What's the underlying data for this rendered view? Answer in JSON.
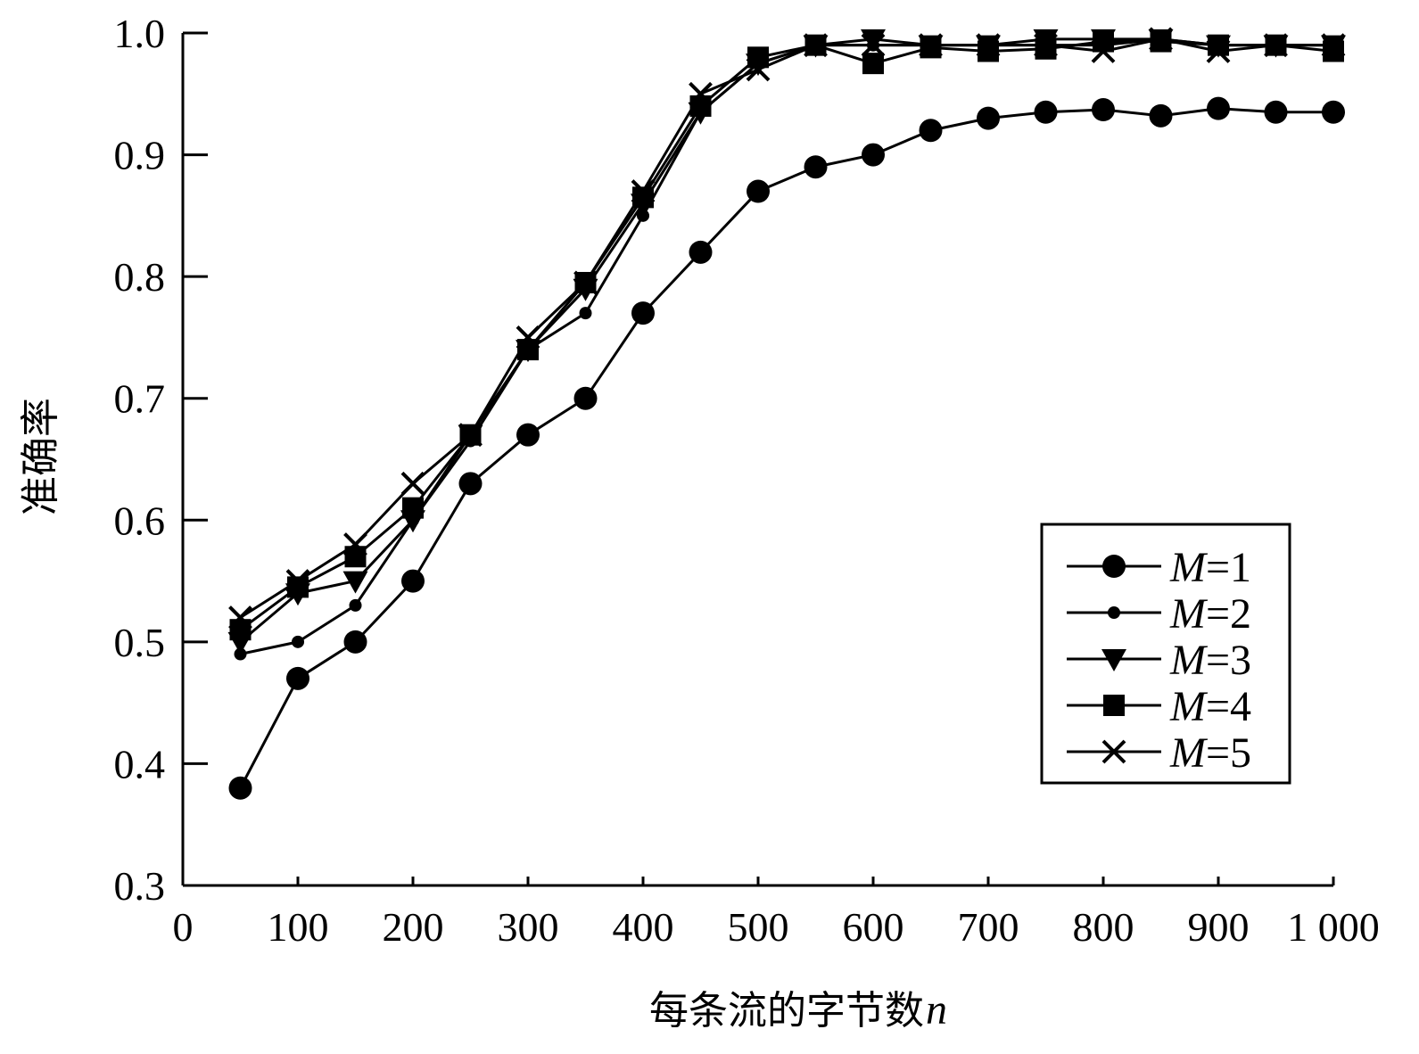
{
  "chart_data": {
    "type": "line",
    "xlabel": "每条流的字节数",
    "xlabel_var": "n",
    "ylabel": "准确率",
    "xlim": [
      0,
      1000
    ],
    "ylim": [
      0.3,
      1.0
    ],
    "x_ticks": [
      0,
      100,
      200,
      300,
      400,
      500,
      600,
      700,
      800,
      900,
      1000
    ],
    "x_tick_labels": [
      "0",
      "100",
      "200",
      "300",
      "400",
      "500",
      "600",
      "700",
      "800",
      "900",
      "1 000"
    ],
    "y_ticks": [
      0.3,
      0.4,
      0.5,
      0.6,
      0.7,
      0.8,
      0.9,
      1.0
    ],
    "y_tick_labels": [
      "0.3",
      "0.4",
      "0.5",
      "0.6",
      "0.7",
      "0.8",
      "0.9",
      "1.0"
    ],
    "grid": false,
    "legend_position": "bottom-right",
    "x": [
      50,
      100,
      150,
      200,
      250,
      300,
      350,
      400,
      450,
      500,
      550,
      600,
      650,
      700,
      750,
      800,
      850,
      900,
      950,
      1000
    ],
    "series": [
      {
        "name": "M=1",
        "label_var": "M",
        "label_rest": "=1",
        "marker": "circle-large",
        "values": [
          0.38,
          0.47,
          0.5,
          0.55,
          0.63,
          0.67,
          0.7,
          0.77,
          0.82,
          0.87,
          0.89,
          0.9,
          0.92,
          0.93,
          0.935,
          0.937,
          0.932,
          0.938,
          0.935,
          0.935
        ]
      },
      {
        "name": "M=2",
        "label_var": "M",
        "label_rest": "=2",
        "marker": "circle-small",
        "values": [
          0.49,
          0.5,
          0.53,
          0.6,
          0.665,
          0.74,
          0.77,
          0.85,
          0.935,
          0.975,
          0.99,
          0.99,
          0.99,
          0.99,
          0.99,
          0.99,
          0.995,
          0.99,
          0.99,
          0.99
        ]
      },
      {
        "name": "M=3",
        "label_var": "M",
        "label_rest": "=3",
        "marker": "triangle-down",
        "values": [
          0.5,
          0.54,
          0.55,
          0.6,
          0.67,
          0.74,
          0.79,
          0.86,
          0.935,
          0.975,
          0.99,
          0.995,
          0.99,
          0.99,
          0.995,
          0.995,
          0.995,
          0.99,
          0.99,
          0.99
        ]
      },
      {
        "name": "M=4",
        "label_var": "M",
        "label_rest": "=4",
        "marker": "square",
        "values": [
          0.51,
          0.545,
          0.57,
          0.61,
          0.67,
          0.74,
          0.795,
          0.865,
          0.94,
          0.98,
          0.99,
          0.975,
          0.988,
          0.985,
          0.987,
          0.993,
          0.993,
          0.99,
          0.99,
          0.985
        ]
      },
      {
        "name": "M=5",
        "label_var": "M",
        "label_rest": "=5",
        "marker": "x",
        "values": [
          0.52,
          0.55,
          0.58,
          0.63,
          0.67,
          0.75,
          0.795,
          0.87,
          0.95,
          0.97,
          0.99,
          0.99,
          0.99,
          0.99,
          0.99,
          0.985,
          0.995,
          0.985,
          0.99,
          0.99
        ]
      }
    ]
  }
}
